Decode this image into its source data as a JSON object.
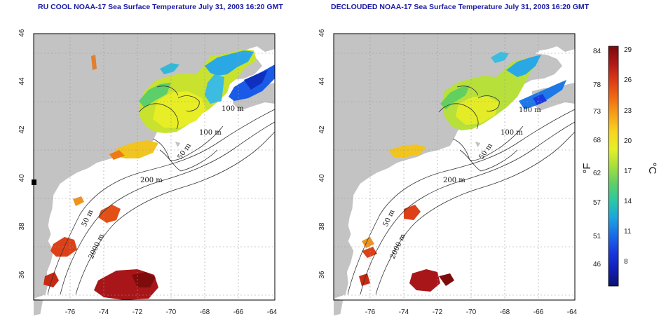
{
  "titles": {
    "left": "RU COOL NOAA-17 Sea Surface Temperature July 31, 2003 16:20 GMT",
    "right": "DECLOUDED NOAA-17 Sea Surface Temperature July 31, 2003 16:20 GMT"
  },
  "axes": {
    "lon_ticks": [
      "-76",
      "-74",
      "-72",
      "-70",
      "-68",
      "-66",
      "-64"
    ],
    "lat_ticks": [
      "36",
      "38",
      "40",
      "42",
      "44",
      "46"
    ]
  },
  "contour_labels": {
    "left": [
      "100 m",
      "100 m",
      "50 m",
      "200 m",
      "50 m",
      "2000 m"
    ],
    "right": [
      "100 m",
      "100 m",
      "50 m",
      "200 m",
      "50 m",
      "2000 m"
    ]
  },
  "colorbar": {
    "fahrenheit": [
      "84",
      "78",
      "73",
      "68",
      "62",
      "57",
      "51",
      "46"
    ],
    "celsius": [
      "29",
      "26",
      "23",
      "20",
      "17",
      "14",
      "11",
      "8"
    ],
    "f_unit": "°F",
    "c_unit": "°C",
    "colors": [
      "#7a0a0a",
      "#b01818",
      "#dd3b14",
      "#f06a12",
      "#f7a218",
      "#f7d51c",
      "#e6ef28",
      "#a6e03c",
      "#5fd064",
      "#2cc8a4",
      "#1aa6e0",
      "#1a6ee8",
      "#1a3ae0",
      "#121fb8",
      "#0a1270"
    ]
  }
}
